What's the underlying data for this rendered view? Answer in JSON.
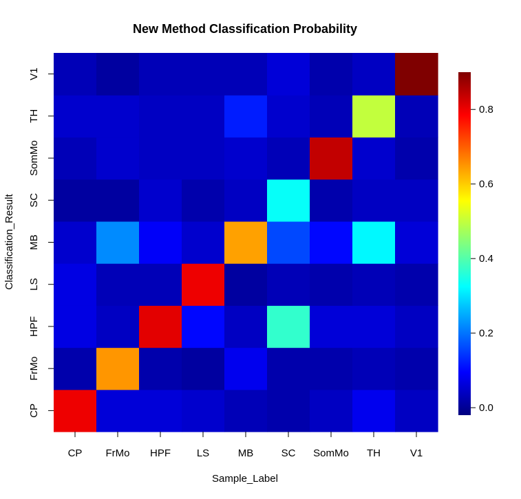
{
  "chart_data": {
    "type": "heatmap",
    "title": "New Method Classification Probability",
    "xlabel": "Sample_Label",
    "ylabel": "Classification_Result",
    "x_categories": [
      "CP",
      "FrMo",
      "HPF",
      "LS",
      "MB",
      "SC",
      "SomMo",
      "TH",
      "V1"
    ],
    "y_categories": [
      "CP",
      "FrMo",
      "HPF",
      "LS",
      "MB",
      "SC",
      "SomMo",
      "TH",
      "V1"
    ],
    "values": [
      [
        0.8,
        0.06,
        0.06,
        0.05,
        0.03,
        0.02,
        0.04,
        0.08,
        0.04
      ],
      [
        0.02,
        0.65,
        0.02,
        0.01,
        0.08,
        0.02,
        0.02,
        0.03,
        0.02
      ],
      [
        0.07,
        0.04,
        0.81,
        0.1,
        0.04,
        0.37,
        0.06,
        0.06,
        0.04
      ],
      [
        0.07,
        0.03,
        0.03,
        0.8,
        0.01,
        0.03,
        0.02,
        0.03,
        0.02
      ],
      [
        0.05,
        0.22,
        0.09,
        0.05,
        0.64,
        0.16,
        0.1,
        0.32,
        0.06
      ],
      [
        0.01,
        0.01,
        0.05,
        0.02,
        0.04,
        0.33,
        0.02,
        0.04,
        0.04
      ],
      [
        0.03,
        0.05,
        0.04,
        0.04,
        0.05,
        0.03,
        0.84,
        0.05,
        0.02
      ],
      [
        0.05,
        0.05,
        0.04,
        0.04,
        0.12,
        0.05,
        0.03,
        0.5,
        0.03
      ],
      [
        0.03,
        0.01,
        0.03,
        0.03,
        0.03,
        0.06,
        0.02,
        0.04,
        0.97
      ]
    ],
    "value_note": "values[row][col]; row = Classification_Result (CP..V1), col = Sample_Label",
    "colorscale": "jet",
    "colorbar": {
      "range": [
        -0.02,
        0.9
      ],
      "ticks": [
        0.0,
        0.2,
        0.4,
        0.6,
        0.8
      ],
      "tick_labels": [
        "0.0",
        "0.2",
        "0.4",
        "0.6",
        "0.8"
      ]
    }
  }
}
